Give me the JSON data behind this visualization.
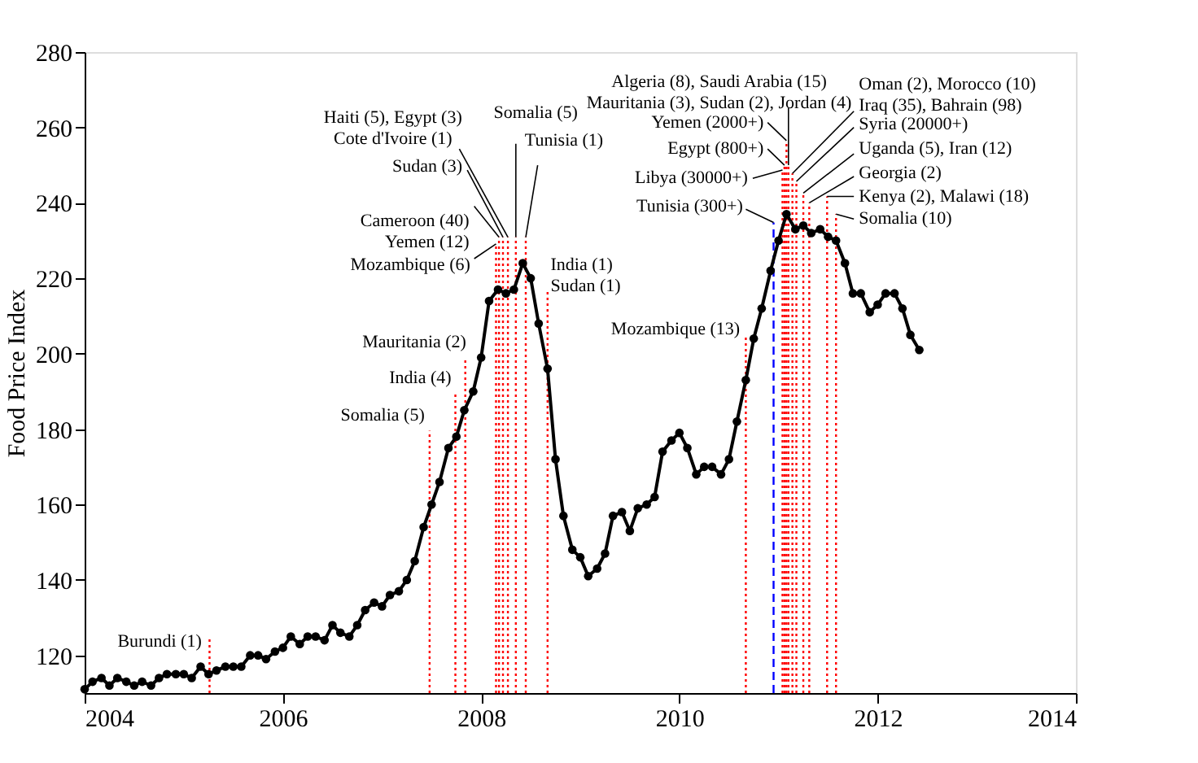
{
  "chart_data": {
    "type": "line",
    "ylabel": "Food Price Index",
    "xlim": [
      2004,
      2014
    ],
    "xticks": [
      2004,
      2006,
      2008,
      2010,
      2012,
      2014
    ],
    "ylim": [
      110,
      280
    ],
    "yticks": [
      120,
      140,
      160,
      180,
      200,
      220,
      240,
      260,
      280
    ],
    "grid": false,
    "marker": "circle",
    "line_style": "solid",
    "series": [
      {
        "color": "#000000",
        "x": [
          2004,
          2004.08,
          2004.17,
          2004.25,
          2004.33,
          2004.42,
          2004.5,
          2004.58,
          2004.67,
          2004.75,
          2004.83,
          2004.92,
          2005,
          2005.08,
          2005.17,
          2005.25,
          2005.33,
          2005.42,
          2005.5,
          2005.58,
          2005.67,
          2005.75,
          2005.83,
          2005.92,
          2006,
          2006.08,
          2006.17,
          2006.25,
          2006.33,
          2006.42,
          2006.5,
          2006.58,
          2006.67,
          2006.75,
          2006.83,
          2006.92,
          2007,
          2007.08,
          2007.17,
          2007.25,
          2007.33,
          2007.42,
          2007.5,
          2007.58,
          2007.67,
          2007.75,
          2007.83,
          2007.92,
          2008,
          2008.08,
          2008.17,
          2008.25,
          2008.33,
          2008.42,
          2008.5,
          2008.58,
          2008.67,
          2008.75,
          2008.83,
          2008.92,
          2009,
          2009.08,
          2009.17,
          2009.25,
          2009.33,
          2009.42,
          2009.5,
          2009.58,
          2009.67,
          2009.75,
          2009.83,
          2009.92,
          2010,
          2010.08,
          2010.17,
          2010.25,
          2010.33,
          2010.42,
          2010.5,
          2010.58,
          2010.67,
          2010.75,
          2010.83,
          2010.92,
          2011,
          2011.08,
          2011.17,
          2011.25,
          2011.33,
          2011.42,
          2011.5,
          2011.58,
          2011.67,
          2011.75,
          2011.83,
          2011.92,
          2012,
          2012.08,
          2012.17,
          2012.25,
          2012.33,
          2012.42
        ],
        "values": [
          111,
          113,
          114,
          112,
          114,
          113,
          112,
          113,
          112,
          114,
          115,
          115,
          115,
          114,
          117,
          115,
          116,
          117,
          117,
          117,
          120,
          120,
          119,
          121,
          122,
          125,
          123,
          125,
          125,
          124,
          128,
          126,
          125,
          128,
          132,
          134,
          133,
          136,
          137,
          140,
          145,
          154,
          160,
          166,
          175,
          178,
          185,
          190,
          199,
          214,
          217,
          216,
          217,
          224,
          220,
          208,
          196,
          172,
          157,
          148,
          146,
          141,
          143,
          147,
          157,
          158,
          153,
          159,
          160,
          162,
          174,
          177,
          179,
          175,
          168,
          170,
          170,
          168,
          172,
          182,
          193,
          204,
          212,
          222,
          230,
          237,
          233,
          234,
          232,
          233,
          231,
          230,
          224,
          216,
          216,
          211,
          213,
          216,
          216,
          212,
          205,
          201
        ]
      }
    ],
    "ref_lines": [
      {
        "axis": "x",
        "value": 2005.26,
        "label": "Burundi (1)",
        "color": "#ff0000",
        "line_style": "dotted"
      },
      {
        "axis": "x",
        "value": 2007.48,
        "label": "Somalia (5)",
        "color": "#ff0000",
        "line_style": "dotted"
      },
      {
        "axis": "x",
        "value": 2007.74,
        "label": "India (4)",
        "color": "#ff0000",
        "line_style": "dotted"
      },
      {
        "axis": "x",
        "value": 2007.84,
        "label": "Mauritania (2)",
        "color": "#ff0000",
        "line_style": "dotted"
      },
      {
        "axis": "x",
        "value": 2008.15,
        "label": "Mozambique (6)",
        "color": "#ff0000",
        "line_style": "dotted"
      },
      {
        "axis": "x",
        "value": 2008.18,
        "label": "Cameroon (40)\nYemen (12)",
        "color": "#ff0000",
        "line_style": "dotted"
      },
      {
        "axis": "x",
        "value": 2008.22,
        "label": "Sudan (3)",
        "color": "#ff0000",
        "line_style": "dotted"
      },
      {
        "axis": "x",
        "value": 2008.27,
        "label": "Haiti (5), Egypt (3)\nCote d'Ivoire (1)",
        "color": "#ff0000",
        "line_style": "dotted"
      },
      {
        "axis": "x",
        "value": 2008.35,
        "label": "Somalia (5)",
        "color": "#ff0000",
        "line_style": "dotted"
      },
      {
        "axis": "x",
        "value": 2008.45,
        "label": "Tunisia (1)",
        "color": "#ff0000",
        "line_style": "dotted"
      },
      {
        "axis": "x",
        "value": 2008.67,
        "label": "India (1)\nSudan (1)",
        "color": "#ff0000",
        "line_style": "dotted"
      },
      {
        "axis": "x",
        "value": 2010.67,
        "label": "Mozambique (13)",
        "color": "#ff0000",
        "line_style": "dotted"
      },
      {
        "axis": "x",
        "value": 2010.95,
        "label": "Tunisia (300+)",
        "color": "#0000ff",
        "line_style": "dashed"
      },
      {
        "axis": "x",
        "value": 2011.04,
        "label": "Libya (30000+)",
        "color": "#ff0000",
        "line_style": "dotted"
      },
      {
        "axis": "x",
        "value": 2011.06,
        "label": "Egypt (800+)",
        "color": "#ff0000",
        "line_style": "dotted"
      },
      {
        "axis": "x",
        "value": 2011.08,
        "label": "Yemen (2000+)",
        "color": "#ff0000",
        "line_style": "dotted"
      },
      {
        "axis": "x",
        "value": 2011.1,
        "label": "Algeria (8), Saudi Arabia (15)\nMauritania (3), Sudan (2), Jordan (4)",
        "color": "#ff0000",
        "line_style": "dotted"
      },
      {
        "axis": "x",
        "value": 2011.14,
        "label": "Oman (2), Morocco (10)\nIraq (35), Bahrain (98)",
        "color": "#ff0000",
        "line_style": "dotted"
      },
      {
        "axis": "x",
        "value": 2011.18,
        "label": "Syria (20000+)",
        "color": "#ff0000",
        "line_style": "dotted"
      },
      {
        "axis": "x",
        "value": 2011.25,
        "label": "Uganda (5), Iran (12)",
        "color": "#ff0000",
        "line_style": "dotted"
      },
      {
        "axis": "x",
        "value": 2011.31,
        "label": "Georgia (2)",
        "color": "#ff0000",
        "line_style": "dotted"
      },
      {
        "axis": "x",
        "value": 2011.49,
        "label": "Kenya (2), Malawi (18)",
        "color": "#ff0000",
        "line_style": "dotted"
      },
      {
        "axis": "x",
        "value": 2011.58,
        "label": "Somalia (10)",
        "color": "#ff0000",
        "line_style": "dotted"
      }
    ]
  }
}
